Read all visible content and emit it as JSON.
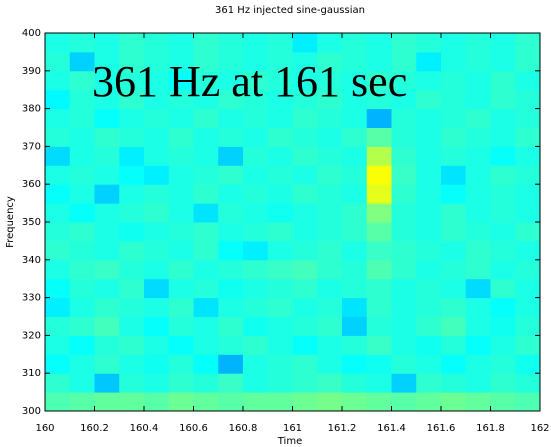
{
  "chart_data": {
    "type": "heatmap",
    "title": "361 Hz injected sine-gaussian",
    "xlabel": "Time",
    "ylabel": "Frequency",
    "annotation": "361 Hz at 161 sec",
    "annotation_color": "#ee1111",
    "xlim": [
      160,
      162
    ],
    "ylim": [
      300,
      400
    ],
    "xticks": [
      160,
      160.2,
      160.4,
      160.6,
      160.8,
      161,
      161.2,
      161.4,
      161.6,
      161.8,
      162
    ],
    "yticks": [
      300,
      310,
      320,
      330,
      340,
      350,
      360,
      370,
      380,
      390,
      400
    ],
    "xbins": [
      160,
      160.1,
      160.2,
      160.3,
      160.4,
      160.5,
      160.6,
      160.7,
      160.8,
      160.9,
      161,
      161.1,
      161.2,
      161.3,
      161.4,
      161.5,
      161.6,
      161.7,
      161.8,
      161.9,
      162
    ],
    "ybins": [
      300,
      305,
      310,
      315,
      320,
      325,
      330,
      335,
      340,
      345,
      350,
      355,
      360,
      365,
      370,
      375,
      380,
      385,
      390,
      395,
      400
    ],
    "zlim": [
      0,
      1
    ],
    "colormap": "jet",
    "z": [
      [
        0.45,
        0.46,
        0.47,
        0.47,
        0.46,
        0.48,
        0.47,
        0.46,
        0.47,
        0.47,
        0.48,
        0.49,
        0.48,
        0.47,
        0.46,
        0.47,
        0.48,
        0.47,
        0.46,
        0.45
      ],
      [
        0.42,
        0.4,
        0.32,
        0.41,
        0.4,
        0.42,
        0.41,
        0.43,
        0.4,
        0.41,
        0.42,
        0.43,
        0.41,
        0.4,
        0.33,
        0.42,
        0.41,
        0.4,
        0.42,
        0.41
      ],
      [
        0.38,
        0.4,
        0.42,
        0.4,
        0.39,
        0.41,
        0.38,
        0.3,
        0.4,
        0.41,
        0.42,
        0.4,
        0.38,
        0.39,
        0.41,
        0.4,
        0.38,
        0.4,
        0.41,
        0.39
      ],
      [
        0.4,
        0.38,
        0.41,
        0.42,
        0.4,
        0.38,
        0.4,
        0.41,
        0.42,
        0.4,
        0.38,
        0.4,
        0.41,
        0.43,
        0.4,
        0.39,
        0.41,
        0.38,
        0.4,
        0.42
      ],
      [
        0.41,
        0.42,
        0.44,
        0.4,
        0.38,
        0.41,
        0.4,
        0.42,
        0.39,
        0.4,
        0.41,
        0.42,
        0.33,
        0.41,
        0.4,
        0.42,
        0.44,
        0.4,
        0.39,
        0.41
      ],
      [
        0.36,
        0.4,
        0.42,
        0.41,
        0.4,
        0.42,
        0.35,
        0.4,
        0.41,
        0.42,
        0.4,
        0.41,
        0.35,
        0.42,
        0.4,
        0.41,
        0.42,
        0.4,
        0.38,
        0.4
      ],
      [
        0.38,
        0.41,
        0.4,
        0.42,
        0.34,
        0.4,
        0.41,
        0.39,
        0.4,
        0.41,
        0.42,
        0.4,
        0.41,
        0.42,
        0.4,
        0.41,
        0.4,
        0.34,
        0.42,
        0.4
      ],
      [
        0.4,
        0.42,
        0.43,
        0.41,
        0.4,
        0.42,
        0.4,
        0.41,
        0.42,
        0.43,
        0.44,
        0.42,
        0.41,
        0.45,
        0.42,
        0.4,
        0.41,
        0.42,
        0.4,
        0.41
      ],
      [
        0.42,
        0.41,
        0.4,
        0.42,
        0.41,
        0.4,
        0.42,
        0.38,
        0.36,
        0.4,
        0.41,
        0.42,
        0.4,
        0.43,
        0.42,
        0.41,
        0.4,
        0.42,
        0.41,
        0.4
      ],
      [
        0.41,
        0.42,
        0.4,
        0.39,
        0.4,
        0.41,
        0.42,
        0.4,
        0.41,
        0.42,
        0.4,
        0.41,
        0.42,
        0.46,
        0.41,
        0.4,
        0.42,
        0.41,
        0.4,
        0.42
      ],
      [
        0.4,
        0.38,
        0.4,
        0.41,
        0.42,
        0.4,
        0.35,
        0.41,
        0.4,
        0.39,
        0.4,
        0.41,
        0.42,
        0.5,
        0.41,
        0.4,
        0.42,
        0.4,
        0.41,
        0.4
      ],
      [
        0.38,
        0.4,
        0.33,
        0.4,
        0.41,
        0.4,
        0.42,
        0.4,
        0.41,
        0.4,
        0.42,
        0.41,
        0.4,
        0.6,
        0.42,
        0.4,
        0.38,
        0.4,
        0.41,
        0.4
      ],
      [
        0.4,
        0.41,
        0.4,
        0.38,
        0.36,
        0.4,
        0.41,
        0.42,
        0.4,
        0.41,
        0.4,
        0.42,
        0.41,
        0.62,
        0.43,
        0.4,
        0.35,
        0.4,
        0.42,
        0.41
      ],
      [
        0.34,
        0.4,
        0.41,
        0.36,
        0.4,
        0.41,
        0.4,
        0.33,
        0.41,
        0.4,
        0.42,
        0.41,
        0.4,
        0.55,
        0.42,
        0.4,
        0.41,
        0.4,
        0.38,
        0.4
      ],
      [
        0.41,
        0.4,
        0.42,
        0.41,
        0.4,
        0.42,
        0.4,
        0.41,
        0.4,
        0.42,
        0.41,
        0.4,
        0.42,
        0.46,
        0.41,
        0.4,
        0.42,
        0.41,
        0.4,
        0.42
      ],
      [
        0.4,
        0.41,
        0.38,
        0.4,
        0.41,
        0.4,
        0.42,
        0.4,
        0.41,
        0.4,
        0.42,
        0.41,
        0.4,
        0.3,
        0.41,
        0.4,
        0.41,
        0.42,
        0.4,
        0.41
      ],
      [
        0.37,
        0.41,
        0.4,
        0.42,
        0.4,
        0.41,
        0.4,
        0.42,
        0.41,
        0.4,
        0.41,
        0.42,
        0.4,
        0.41,
        0.4,
        0.42,
        0.41,
        0.4,
        0.42,
        0.41
      ],
      [
        0.4,
        0.42,
        0.4,
        0.41,
        0.4,
        0.38,
        0.41,
        0.4,
        0.42,
        0.41,
        0.4,
        0.41,
        0.4,
        0.42,
        0.41,
        0.4,
        0.41,
        0.4,
        0.42,
        0.4
      ],
      [
        0.41,
        0.33,
        0.4,
        0.42,
        0.41,
        0.4,
        0.42,
        0.41,
        0.4,
        0.41,
        0.4,
        0.42,
        0.41,
        0.4,
        0.42,
        0.36,
        0.4,
        0.41,
        0.4,
        0.42
      ],
      [
        0.4,
        0.41,
        0.4,
        0.42,
        0.41,
        0.4,
        0.42,
        0.41,
        0.4,
        0.41,
        0.36,
        0.4,
        0.41,
        0.4,
        0.42,
        0.41,
        0.4,
        0.41,
        0.4,
        0.42
      ]
    ]
  }
}
